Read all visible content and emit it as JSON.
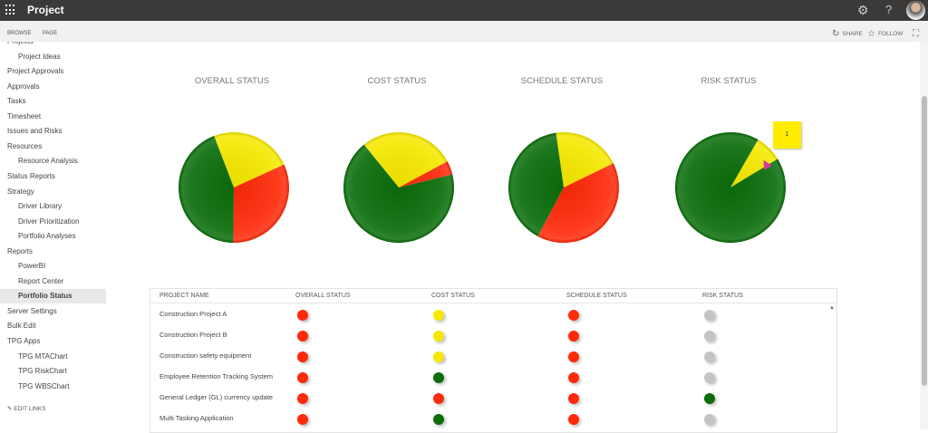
{
  "header": {
    "app_title": "Project",
    "icons": [
      "waffle-icon",
      "gear-icon",
      "help-icon",
      "avatar"
    ],
    "help_glyph": "?"
  },
  "ribbon": {
    "tabs": [
      "BROWSE",
      "PAGE"
    ],
    "share": "SHARE",
    "follow": "FOLLOW"
  },
  "sidebar": {
    "items": [
      {
        "label": "Projects",
        "sub": false
      },
      {
        "label": "Project Ideas",
        "sub": true
      },
      {
        "label": "Project Approvals",
        "sub": false
      },
      {
        "label": "Approvals",
        "sub": false
      },
      {
        "label": "Tasks",
        "sub": false
      },
      {
        "label": "Timesheet",
        "sub": false
      },
      {
        "label": "Issues and Risks",
        "sub": false
      },
      {
        "label": "Resources",
        "sub": false
      },
      {
        "label": "Resource Analysis",
        "sub": true
      },
      {
        "label": "Status Reports",
        "sub": false
      },
      {
        "label": "Strategy",
        "sub": false
      },
      {
        "label": "Driver Library",
        "sub": true
      },
      {
        "label": "Driver Prioritization",
        "sub": true
      },
      {
        "label": "Portfolio Analyses",
        "sub": true
      },
      {
        "label": "Reports",
        "sub": false
      },
      {
        "label": "PowerBI",
        "sub": true
      },
      {
        "label": "Report Center",
        "sub": true
      },
      {
        "label": "Portfolio Status",
        "sub": true,
        "selected": true
      },
      {
        "label": "Server Settings",
        "sub": false
      },
      {
        "label": "Bulk Edit",
        "sub": false
      },
      {
        "label": "TPG Apps",
        "sub": false
      },
      {
        "label": "TPG MTAChart",
        "sub": true
      },
      {
        "label": "TPG RiskChart",
        "sub": true
      },
      {
        "label": "TPG WBSChart",
        "sub": true
      }
    ],
    "edit_links": "EDIT LINKS"
  },
  "colors": {
    "green": "#0b6e0b",
    "yellow": "#f5e800",
    "red": "#ff2a0a",
    "gray": "#c4c4c4"
  },
  "chart_data": [
    {
      "type": "pie",
      "title": "OVERALL STATUS",
      "slices": [
        {
          "status": "yellow",
          "value": 6
        },
        {
          "status": "red",
          "value": 8
        },
        {
          "status": "green",
          "value": 11
        }
      ]
    },
    {
      "type": "pie",
      "title": "COST STATUS",
      "slices": [
        {
          "status": "yellow",
          "value": 7
        },
        {
          "status": "red",
          "value": 1
        },
        {
          "status": "green",
          "value": 17
        }
      ]
    },
    {
      "type": "pie",
      "title": "SCHEDULE STATUS",
      "slices": [
        {
          "status": "yellow",
          "value": 5
        },
        {
          "status": "red",
          "value": 10
        },
        {
          "status": "green",
          "value": 10
        }
      ]
    },
    {
      "type": "pie",
      "title": "RISK STATUS",
      "slices": [
        {
          "status": "yellow",
          "value": 2
        },
        {
          "status": "green",
          "value": 23
        }
      ]
    }
  ],
  "tooltip": "1",
  "table": {
    "headers": [
      "PROJECT NAME",
      "OVERALL STATUS",
      "COST STATUS",
      "SCHEDULE STATUS",
      "RISK STATUS"
    ],
    "rows": [
      {
        "name": "Construction Project A",
        "status": [
          "red",
          "yellow",
          "red",
          "gray"
        ]
      },
      {
        "name": "Construction Project B",
        "status": [
          "red",
          "yellow",
          "red",
          "gray"
        ]
      },
      {
        "name": "Construction safety equipment",
        "status": [
          "red",
          "yellow",
          "red",
          "gray"
        ]
      },
      {
        "name": "Employee Retention Tracking System",
        "status": [
          "red",
          "green",
          "red",
          "gray"
        ]
      },
      {
        "name": "General Ledger (GL) currency update",
        "status": [
          "red",
          "red",
          "red",
          "green"
        ]
      },
      {
        "name": "Multi Tasking Application",
        "status": [
          "red",
          "green",
          "red",
          "gray"
        ]
      }
    ]
  }
}
